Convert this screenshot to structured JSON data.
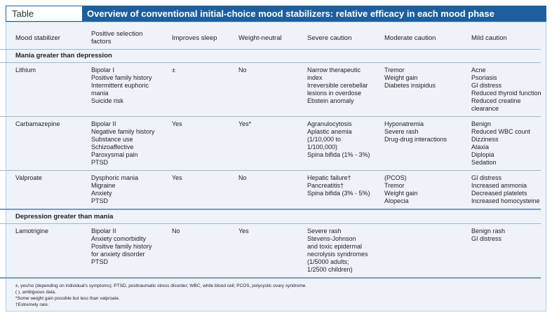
{
  "header": {
    "label": "Table",
    "title": "Overview of conventional initial-choice mood stabilizers: relative efficacy in each mood phase"
  },
  "table": {
    "columns": [
      [
        "Mood stabilizer"
      ],
      [
        "Positive selection",
        "factors"
      ],
      [
        "Improves sleep"
      ],
      [
        "Weight-neutral"
      ],
      [
        "Severe caution"
      ],
      [
        "Moderate caution"
      ],
      [
        "Mild caution"
      ]
    ],
    "sections": [
      {
        "title": "Mania greater than depression",
        "rows": [
          [
            [
              "Lithium"
            ],
            [
              "Bipolar I",
              "Positive family history",
              "Intermittent euphoric",
              "mania",
              "Suicide risk"
            ],
            [
              "±"
            ],
            [
              "No"
            ],
            [
              "Narrow therapeutic",
              "index",
              "Irreversible cerebellar",
              "lesions in overdose",
              "Ebstein anomaly"
            ],
            [
              "Tremor",
              "Weight gain",
              "Diabetes insipidus"
            ],
            [
              "Acne",
              "Psoriasis",
              "GI distress",
              "Reduced thyroid function",
              "Reduced creatine",
              "clearance"
            ]
          ],
          [
            [
              "Carbamazepine"
            ],
            [
              "Bipolar II",
              "Negative family history",
              "Substance use",
              "Schizoaffective",
              "Paroxysmal pain",
              "PTSD"
            ],
            [
              "Yes"
            ],
            [
              "Yes*"
            ],
            [
              "Agranulocytosis",
              "Aplastic anemia",
              "(1/10,000 to",
              "1/100,000)",
              "Spina bifida (1% - 3%)"
            ],
            [
              "Hyponatremia",
              "Severe rash",
              "Drug-drug interactions"
            ],
            [
              "Benign",
              "Reduced WBC count",
              "Dizziness",
              "Ataxia",
              "Diplopia",
              "Sedation"
            ]
          ],
          [
            [
              "Valproate"
            ],
            [
              "Dysphoric mania",
              "Migraine",
              "Anxiety",
              "PTSD"
            ],
            [
              "Yes"
            ],
            [
              "No"
            ],
            [
              "Hepatic failure†",
              "Pancreatitis†",
              "Spina bifida (3% - 5%)"
            ],
            [
              "(PCOS)",
              "Tremor",
              "Weight gain",
              "Alopecia"
            ],
            [
              "GI distress",
              "Increased ammonia",
              "Decreased platelets",
              "Increased homocysteine"
            ]
          ]
        ]
      },
      {
        "title": "Depression greater than mania",
        "rows": [
          [
            [
              "Lamotrigine"
            ],
            [
              "Bipolar II",
              "Anxiety comorbidity",
              "Positive family history",
              "for anxiety disorder",
              "PTSD"
            ],
            [
              "No"
            ],
            [
              "Yes"
            ],
            [
              "Severe rash",
              "Stevens-Johnson",
              "and toxic epidermal",
              "necrolysis syndromes",
              "(1/5000 adults;",
              "1/2500 children)"
            ],
            [],
            [
              "Benign rash",
              "GI distress"
            ]
          ]
        ]
      }
    ]
  },
  "footnotes": [
    "±, yes/no (depending on individual's symptoms); PTSD, posttraumatic stress disorder; WBC, white blood cell; PCOS, polycystic ovary syndrome.",
    "( ), ambiguous data.",
    "*Some weight gain possible but less than valproate.",
    "†Extremely rare."
  ]
}
